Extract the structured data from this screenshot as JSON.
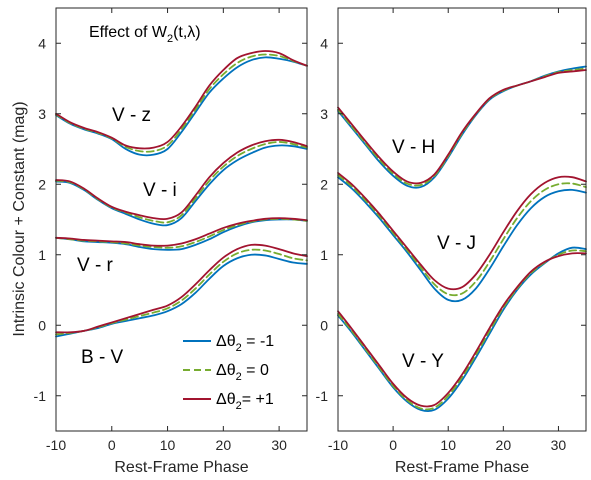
{
  "chart_data": [
    {
      "type": "line",
      "panel": "left",
      "xlabel": "Rest-Frame Phase",
      "ylabel": "Intrinsic Colour + Constant (mag)",
      "xlim": [
        -10,
        35
      ],
      "ylim": [
        -1.5,
        4.5
      ],
      "xticks": [
        "-10",
        "0",
        "10",
        "20",
        "30"
      ],
      "yticks": [
        "-1",
        "0",
        "1",
        "2",
        "3",
        "4"
      ],
      "annotation": {
        "prefix": "Effect of W",
        "sub": "2",
        "suffix": "(t,λ)"
      },
      "legend": {
        "position": "bottom-right",
        "entries": [
          {
            "prefix": "Δθ",
            "sub": "2",
            "suffix": " = -1",
            "color": "#0072BD",
            "dash": "solid"
          },
          {
            "prefix": "Δθ",
            "sub": "2",
            "suffix": " = 0",
            "color": "#77AC30",
            "dash": "dashed"
          },
          {
            "prefix": "Δθ",
            "sub": "2",
            "suffix": "= +1",
            "color": "#A2142F",
            "dash": "solid"
          }
        ]
      },
      "groups": [
        {
          "label": "V - z",
          "x": [
            -10,
            -7.5,
            -5,
            -2.5,
            0,
            2.5,
            5,
            7.5,
            10,
            12.5,
            15,
            17.5,
            20,
            22.5,
            25,
            27.5,
            30,
            32.5,
            35
          ],
          "series": [
            {
              "name": "Δθ2 = -1",
              "values": [
                2.98,
                2.86,
                2.78,
                2.72,
                2.64,
                2.5,
                2.42,
                2.42,
                2.5,
                2.74,
                3.02,
                3.3,
                3.5,
                3.66,
                3.76,
                3.8,
                3.78,
                3.74,
                3.68
              ]
            },
            {
              "name": "Δθ2 = 0",
              "values": [
                2.99,
                2.87,
                2.79,
                2.73,
                2.65,
                2.53,
                2.47,
                2.47,
                2.55,
                2.78,
                3.06,
                3.35,
                3.56,
                3.72,
                3.81,
                3.84,
                3.82,
                3.75,
                3.68
              ]
            },
            {
              "name": "Δθ2 = +1",
              "values": [
                3.0,
                2.88,
                2.8,
                2.74,
                2.66,
                2.55,
                2.51,
                2.52,
                2.6,
                2.82,
                3.1,
                3.4,
                3.62,
                3.79,
                3.86,
                3.89,
                3.86,
                3.76,
                3.68
              ]
            }
          ]
        },
        {
          "label": "V - i",
          "x": [
            -10,
            -7.5,
            -5,
            -2.5,
            0,
            2.5,
            5,
            7.5,
            10,
            12.5,
            15,
            17.5,
            20,
            22.5,
            25,
            27.5,
            30,
            32.5,
            35
          ],
          "series": [
            {
              "name": "Δθ2 = -1",
              "values": [
                2.04,
                2.02,
                1.92,
                1.78,
                1.66,
                1.58,
                1.5,
                1.44,
                1.42,
                1.52,
                1.76,
                2.0,
                2.2,
                2.34,
                2.44,
                2.52,
                2.55,
                2.54,
                2.5
              ]
            },
            {
              "name": "Δθ2 = 0",
              "values": [
                2.05,
                2.03,
                1.93,
                1.79,
                1.67,
                1.6,
                1.53,
                1.48,
                1.46,
                1.56,
                1.8,
                2.05,
                2.25,
                2.4,
                2.5,
                2.57,
                2.6,
                2.57,
                2.52
              ]
            },
            {
              "name": "Δθ2 = +1",
              "values": [
                2.06,
                2.04,
                1.94,
                1.8,
                1.68,
                1.61,
                1.56,
                1.52,
                1.51,
                1.6,
                1.84,
                2.1,
                2.3,
                2.45,
                2.55,
                2.61,
                2.63,
                2.6,
                2.54
              ]
            }
          ]
        },
        {
          "label": "V - r",
          "x": [
            -10,
            -7.5,
            -5,
            -2.5,
            0,
            2.5,
            5,
            7.5,
            10,
            12.5,
            15,
            17.5,
            20,
            22.5,
            25,
            27.5,
            30,
            32.5,
            35
          ],
          "series": [
            {
              "name": "Δθ2 = -1",
              "values": [
                1.24,
                1.22,
                1.19,
                1.18,
                1.17,
                1.15,
                1.11,
                1.08,
                1.07,
                1.08,
                1.14,
                1.22,
                1.32,
                1.4,
                1.46,
                1.49,
                1.5,
                1.5,
                1.48
              ]
            },
            {
              "name": "Δθ2 = 0",
              "values": [
                1.24,
                1.22,
                1.2,
                1.19,
                1.18,
                1.16,
                1.13,
                1.11,
                1.1,
                1.12,
                1.18,
                1.26,
                1.35,
                1.42,
                1.47,
                1.5,
                1.51,
                1.5,
                1.48
              ]
            },
            {
              "name": "Δθ2 = +1",
              "values": [
                1.24,
                1.23,
                1.21,
                1.2,
                1.19,
                1.18,
                1.15,
                1.13,
                1.13,
                1.16,
                1.22,
                1.3,
                1.38,
                1.44,
                1.48,
                1.51,
                1.52,
                1.51,
                1.49
              ]
            }
          ]
        },
        {
          "label": "B - V",
          "x": [
            -10,
            -7.5,
            -5,
            -2.5,
            0,
            2.5,
            5,
            7.5,
            10,
            12.5,
            15,
            17.5,
            20,
            22.5,
            25,
            27.5,
            30,
            32.5,
            35
          ],
          "series": [
            {
              "name": "Δθ2 = -1",
              "values": [
                -0.16,
                -0.12,
                -0.08,
                -0.04,
                0.02,
                0.06,
                0.1,
                0.14,
                0.2,
                0.3,
                0.46,
                0.66,
                0.84,
                0.95,
                1.0,
                0.99,
                0.94,
                0.89,
                0.87
              ]
            },
            {
              "name": "Δθ2 = 0",
              "values": [
                -0.13,
                -0.11,
                -0.08,
                -0.03,
                0.03,
                0.08,
                0.13,
                0.18,
                0.24,
                0.35,
                0.52,
                0.72,
                0.9,
                1.02,
                1.07,
                1.06,
                1.01,
                0.95,
                0.92
              ]
            },
            {
              "name": "Δθ2 = +1",
              "values": [
                -0.1,
                -0.1,
                -0.08,
                -0.02,
                0.04,
                0.1,
                0.16,
                0.22,
                0.28,
                0.4,
                0.58,
                0.78,
                0.96,
                1.08,
                1.14,
                1.13,
                1.08,
                1.02,
                0.98
              ]
            }
          ]
        }
      ]
    },
    {
      "type": "line",
      "panel": "right",
      "xlabel": "Rest-Frame Phase",
      "ylabel": "",
      "xlim": [
        -10,
        35
      ],
      "ylim": [
        -1.5,
        4.5
      ],
      "xticks": [
        "-10",
        "0",
        "10",
        "20",
        "30"
      ],
      "yticks": [
        "-1",
        "0",
        "1",
        "2",
        "3",
        "4"
      ],
      "groups": [
        {
          "label": "V - H",
          "x": [
            -10,
            -7.5,
            -5,
            -2.5,
            0,
            2.5,
            5,
            7.5,
            10,
            12.5,
            15,
            17.5,
            20,
            22.5,
            25,
            27.5,
            30,
            32.5,
            35
          ],
          "series": [
            {
              "name": "Δθ2 = -1",
              "values": [
                3.04,
                2.8,
                2.56,
                2.32,
                2.12,
                1.98,
                1.96,
                2.1,
                2.38,
                2.7,
                2.98,
                3.2,
                3.32,
                3.4,
                3.46,
                3.54,
                3.6,
                3.64,
                3.67
              ]
            },
            {
              "name": "Δθ2 = 0",
              "values": [
                3.06,
                2.82,
                2.58,
                2.35,
                2.15,
                2.01,
                1.99,
                2.12,
                2.4,
                2.72,
                2.99,
                3.21,
                3.33,
                3.4,
                3.46,
                3.53,
                3.59,
                3.62,
                3.64
              ]
            },
            {
              "name": "Δθ2 = +1",
              "values": [
                3.09,
                2.85,
                2.61,
                2.38,
                2.18,
                2.04,
                2.02,
                2.14,
                2.42,
                2.74,
                3.0,
                3.22,
                3.34,
                3.4,
                3.46,
                3.52,
                3.58,
                3.6,
                3.62
              ]
            }
          ]
        },
        {
          "label": "V - J",
          "x": [
            -10,
            -7.5,
            -5,
            -2.5,
            0,
            2.5,
            5,
            7.5,
            10,
            12.5,
            15,
            17.5,
            20,
            22.5,
            25,
            27.5,
            30,
            32.5,
            35
          ],
          "series": [
            {
              "name": "Δθ2 = -1",
              "values": [
                2.1,
                1.94,
                1.74,
                1.52,
                1.28,
                1.04,
                0.78,
                0.52,
                0.36,
                0.36,
                0.52,
                0.8,
                1.12,
                1.42,
                1.66,
                1.82,
                1.9,
                1.92,
                1.88
              ]
            },
            {
              "name": "Δθ2 = 0",
              "values": [
                2.13,
                1.97,
                1.77,
                1.55,
                1.31,
                1.07,
                0.82,
                0.58,
                0.44,
                0.45,
                0.62,
                0.9,
                1.22,
                1.52,
                1.76,
                1.92,
                2.0,
                2.01,
                1.96
              ]
            },
            {
              "name": "Δθ2 = +1",
              "values": [
                2.16,
                2.0,
                1.8,
                1.58,
                1.34,
                1.1,
                0.86,
                0.64,
                0.52,
                0.54,
                0.72,
                1.0,
                1.32,
                1.62,
                1.86,
                2.02,
                2.1,
                2.1,
                2.04
              ]
            }
          ]
        },
        {
          "label": "V - Y",
          "x": [
            -10,
            -7.5,
            -5,
            -2.5,
            0,
            2.5,
            5,
            7.5,
            10,
            12.5,
            15,
            17.5,
            20,
            22.5,
            25,
            27.5,
            30,
            32.5,
            35
          ],
          "series": [
            {
              "name": "Δθ2 = -1",
              "values": [
                0.14,
                -0.1,
                -0.36,
                -0.62,
                -0.88,
                -1.08,
                -1.2,
                -1.2,
                -1.04,
                -0.78,
                -0.46,
                -0.12,
                0.22,
                0.5,
                0.72,
                0.88,
                1.02,
                1.1,
                1.08
              ]
            },
            {
              "name": "Δθ2 = 0",
              "values": [
                0.16,
                -0.08,
                -0.34,
                -0.6,
                -0.86,
                -1.06,
                -1.18,
                -1.17,
                -1.0,
                -0.74,
                -0.42,
                -0.08,
                0.25,
                0.52,
                0.74,
                0.89,
                1.0,
                1.06,
                1.05
              ]
            },
            {
              "name": "Δθ2 = +1",
              "values": [
                0.2,
                -0.05,
                -0.31,
                -0.57,
                -0.83,
                -1.03,
                -1.14,
                -1.13,
                -0.96,
                -0.7,
                -0.38,
                -0.04,
                0.28,
                0.54,
                0.76,
                0.9,
                0.98,
                1.02,
                1.02
              ]
            }
          ]
        }
      ]
    }
  ]
}
